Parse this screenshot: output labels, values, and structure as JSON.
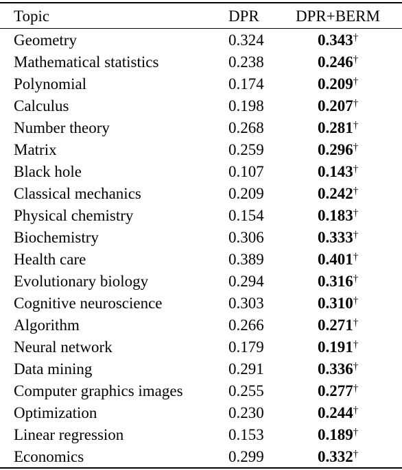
{
  "table": {
    "headers": {
      "topic": "Topic",
      "dpr": "DPR",
      "dpr_berm": "DPR+BERM"
    },
    "significance_marker": "†",
    "rows": [
      {
        "topic": "Geometry",
        "dpr": "0.324",
        "dpr_berm": "0.343"
      },
      {
        "topic": "Mathematical statistics",
        "dpr": "0.238",
        "dpr_berm": "0.246"
      },
      {
        "topic": "Polynomial",
        "dpr": "0.174",
        "dpr_berm": "0.209"
      },
      {
        "topic": "Calculus",
        "dpr": "0.198",
        "dpr_berm": "0.207"
      },
      {
        "topic": "Number theory",
        "dpr": "0.268",
        "dpr_berm": "0.281"
      },
      {
        "topic": "Matrix",
        "dpr": "0.259",
        "dpr_berm": "0.296"
      },
      {
        "topic": "Black hole",
        "dpr": "0.107",
        "dpr_berm": "0.143"
      },
      {
        "topic": "Classical mechanics",
        "dpr": "0.209",
        "dpr_berm": "0.242"
      },
      {
        "topic": "Physical chemistry",
        "dpr": "0.154",
        "dpr_berm": "0.183"
      },
      {
        "topic": "Biochemistry",
        "dpr": "0.306",
        "dpr_berm": "0.333"
      },
      {
        "topic": "Health care",
        "dpr": "0.389",
        "dpr_berm": "0.401"
      },
      {
        "topic": "Evolutionary biology",
        "dpr": "0.294",
        "dpr_berm": "0.316"
      },
      {
        "topic": "Cognitive neuroscience",
        "dpr": "0.303",
        "dpr_berm": "0.310"
      },
      {
        "topic": "Algorithm",
        "dpr": "0.266",
        "dpr_berm": "0.271"
      },
      {
        "topic": "Neural network",
        "dpr": "0.179",
        "dpr_berm": "0.191"
      },
      {
        "topic": "Data mining",
        "dpr": "0.291",
        "dpr_berm": "0.336"
      },
      {
        "topic": "Computer graphics images",
        "dpr": "0.255",
        "dpr_berm": "0.277"
      },
      {
        "topic": "Optimization",
        "dpr": "0.230",
        "dpr_berm": "0.244"
      },
      {
        "topic": "Linear regression",
        "dpr": "0.153",
        "dpr_berm": "0.189"
      },
      {
        "topic": "Economics",
        "dpr": "0.299",
        "dpr_berm": "0.332"
      }
    ]
  }
}
